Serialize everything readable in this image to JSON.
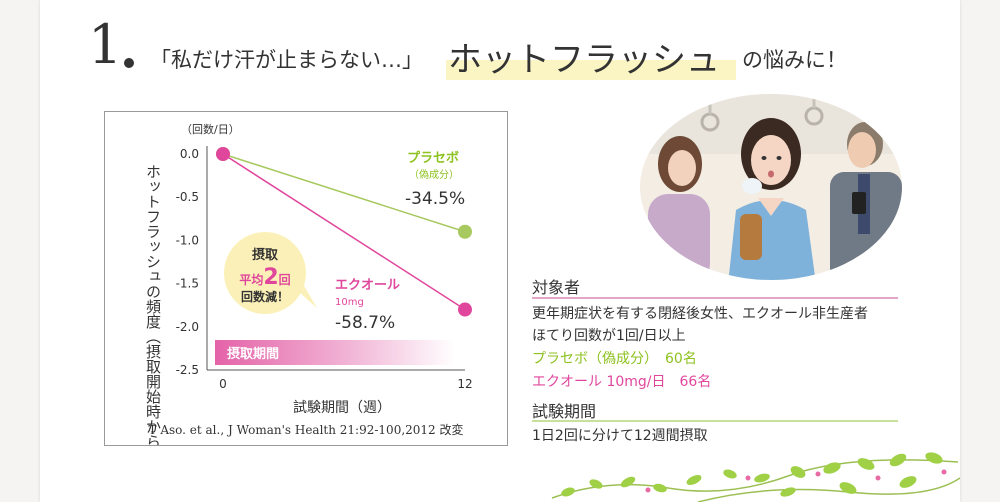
{
  "header": {
    "number": "1",
    "quote": "「私だけ汗が止まらない…」",
    "keyword": "ホットフラッシュ",
    "tail": "の悩みに！"
  },
  "chart_data": {
    "type": "line",
    "unit_label": "（回数/日）",
    "ylabel": "ホットフラッシュの頻度（摂取開始時からの変化）",
    "xlabel": "試験期間（週）",
    "x": [
      0,
      12
    ],
    "x_ticks": [
      "0",
      "12"
    ],
    "y_ticks": [
      "0.0",
      "-0.5",
      "-1.0",
      "-1.5",
      "-2.0",
      "-2.5"
    ],
    "ylim": [
      -2.5,
      0
    ],
    "series": [
      {
        "name": "プラセボ",
        "sub": "（偽成分）",
        "values": [
          0,
          -0.9
        ],
        "change_label": "-34.5%",
        "color": "#a7c95f"
      },
      {
        "name": "エクオール",
        "sub": "10mg",
        "values": [
          0,
          -1.8
        ],
        "change_label": "-58.7%",
        "color": "#e0479c"
      }
    ],
    "bubble": {
      "line1": "摂取",
      "line2_a": "平均",
      "line2_num": "2",
      "line2_b": "回",
      "line3": "回数減！"
    },
    "intake_bar_label": "摂取期間",
    "citation": "T Aso. et al., J Woman's Health 21:92-100,2012 改変"
  },
  "info": {
    "subjects_title": "対象者",
    "subjects_line1": "更年期症状を有する閉経後女性、エクオール非生産者",
    "subjects_line2": "ほてり回数が1回/日以上",
    "placebo_line": "プラセボ（偽成分）　60名",
    "ecole_line": "エクオール 10mg/日　66名",
    "period_title": "試験期間",
    "period_line": "1日2回に分けて12週間摂取"
  },
  "colors": {
    "pink": "#e0479c",
    "green": "#8dc21f",
    "highlight": "#fbf5c3",
    "bubble": "#fbf1b8"
  }
}
